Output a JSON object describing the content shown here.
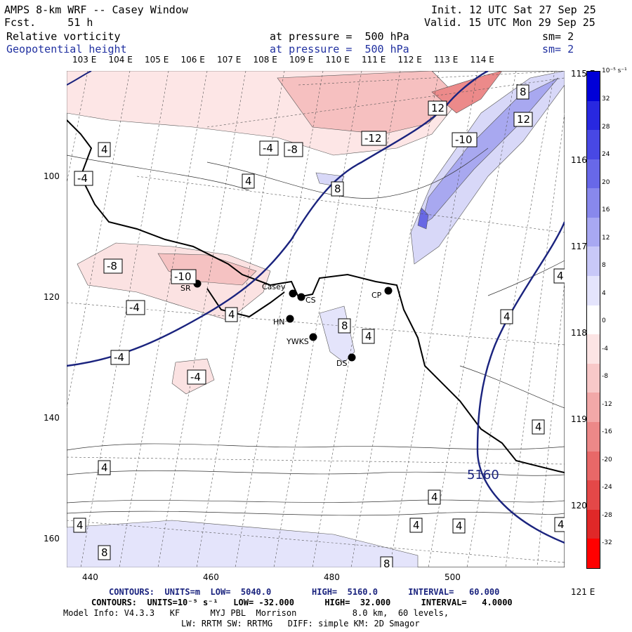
{
  "header": {
    "model_title": "AMPS 8-km WRF -- Casey Window",
    "forecast": "Fcst.     51 h",
    "init": "Init. 12 UTC Sat 27 Sep 25",
    "valid": "Valid. 15 UTC Mon 29 Sep 25",
    "field1_name": "Relative vorticity",
    "field1_level": "at pressure =  500 hPa",
    "field1_smooth": "sm= 2",
    "field2_name": "Geopotential height",
    "field2_level": "at pressure =  500 hPa",
    "field2_smooth": "sm= 2"
  },
  "map": {
    "longitude_labels": [
      "103 E",
      "104 E",
      "105 E",
      "106 E",
      "107 E",
      "108 E",
      "109 E",
      "110 E",
      "111 E",
      "112 E",
      "113 E",
      "114 E"
    ],
    "right_longitude_labels": [
      "115 E",
      "116 E",
      "117 E",
      "118 E",
      "119 E",
      "120 E",
      "121 E"
    ],
    "y_axis_labels": [
      "100",
      "120",
      "140",
      "160"
    ],
    "x_axis_labels": [
      "440",
      "460",
      "480",
      "500"
    ],
    "stations": [
      "SR",
      "Casey",
      "CS",
      "HN",
      "YWKS",
      "DS",
      "CP"
    ],
    "contour_labels": [
      "4",
      "-4",
      "-8",
      "-12",
      "8",
      "12",
      "-10"
    ],
    "height_label": "5160",
    "colors": {
      "border": "#000000",
      "height_contour": "#1a237e",
      "positive_shade": "#9ea0f0",
      "negative_shade": "#f2a0a0"
    }
  },
  "colorbar": {
    "unit": "10⁻⁵ s⁻¹",
    "ticks": [
      "32",
      "28",
      "24",
      "20",
      "16",
      "12",
      "8",
      "4",
      "0",
      "-4",
      "-8",
      "-12",
      "-16",
      "-20",
      "-24",
      "-28",
      "-32"
    ],
    "colors": [
      "#0000d8",
      "#2828e0",
      "#4848e4",
      "#6868e8",
      "#8888ec",
      "#a8a8f2",
      "#c8c8f8",
      "#e4e4fc",
      "#ffffff",
      "#fce4e4",
      "#f8c8c8",
      "#f2a8a8",
      "#ec8888",
      "#e86868",
      "#e44848",
      "#e02828",
      "#ff0000"
    ]
  },
  "footer": {
    "line1_label": "CONTOURS:",
    "line1_units": "UNITS=m",
    "line1_low": "LOW=  5040.0",
    "line1_high": "HIGH=  5160.0",
    "line1_interval": "INTERVAL=   60.000",
    "line2": "CONTOURS:  UNITS=10⁻⁵ s⁻¹   LOW= -32.000      HIGH=  32.000      INTERVAL=   4.0000",
    "line3": "Model Info: V4.3.3   KF      MYJ PBL  Morrison           8.0 km,  60 levels,",
    "line4": "LW: RRTM SW: RRTMG   DIFF: simple KM: 2D Smagor"
  }
}
